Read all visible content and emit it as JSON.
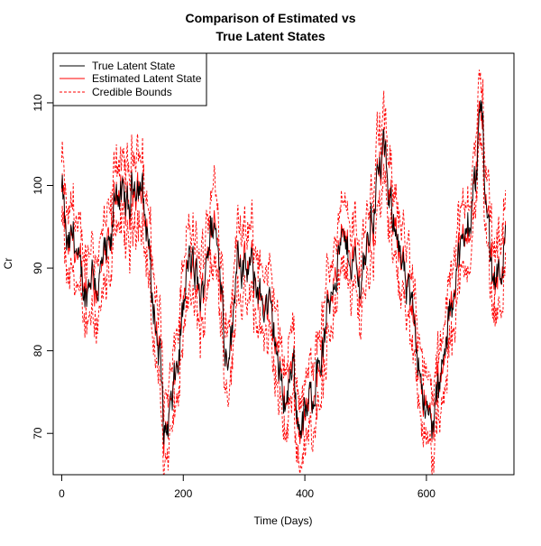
{
  "chart_data": {
    "type": "line",
    "title": [
      "Comparison of Estimated vs",
      "True Latent States"
    ],
    "xlabel": "Time (Days)",
    "ylabel": "Cr",
    "xlim": [
      -14,
      744
    ],
    "ylim": [
      65,
      116
    ],
    "x_ticks": [
      0,
      200,
      400,
      600
    ],
    "y_ticks": [
      70,
      80,
      90,
      100,
      110
    ],
    "legend": {
      "position": "top-left"
    },
    "anchor_days": [
      0,
      10,
      20,
      30,
      40,
      50,
      60,
      70,
      80,
      90,
      100,
      110,
      120,
      130,
      140,
      150,
      160,
      170,
      180,
      190,
      200,
      210,
      220,
      230,
      240,
      250,
      260,
      270,
      280,
      290,
      300,
      310,
      320,
      330,
      340,
      350,
      360,
      370,
      380,
      390,
      400,
      410,
      420,
      430,
      440,
      450,
      460,
      470,
      480,
      490,
      500,
      510,
      520,
      530,
      540,
      550,
      560,
      570,
      580,
      590,
      600,
      610,
      620,
      630,
      640,
      650,
      660,
      670,
      680,
      690,
      700,
      710,
      720,
      730
    ],
    "anchor_values": [
      99,
      92,
      94,
      89,
      87,
      90,
      88,
      91,
      92,
      100,
      98,
      97,
      101,
      100,
      95,
      86,
      80,
      70,
      73,
      78,
      85,
      91,
      89,
      86,
      93,
      95,
      91,
      80,
      82,
      93,
      89,
      90,
      88,
      86,
      85,
      82,
      76,
      74,
      79,
      71,
      72,
      74,
      78,
      80,
      86,
      90,
      93,
      92,
      91,
      88,
      92,
      96,
      101,
      104,
      97,
      96,
      90,
      86,
      84,
      78,
      72,
      71,
      75,
      79,
      85,
      91,
      92,
      96,
      100,
      110,
      96,
      89,
      90,
      93
    ],
    "series": [
      {
        "name": "True Latent State",
        "color": "#000000",
        "style": "solid"
      },
      {
        "name": "Estimated Latent State",
        "color": "#ff0000",
        "style": "solid"
      },
      {
        "name": "Credible Bounds",
        "color": "#ff0000",
        "style": "dashed"
      }
    ]
  }
}
